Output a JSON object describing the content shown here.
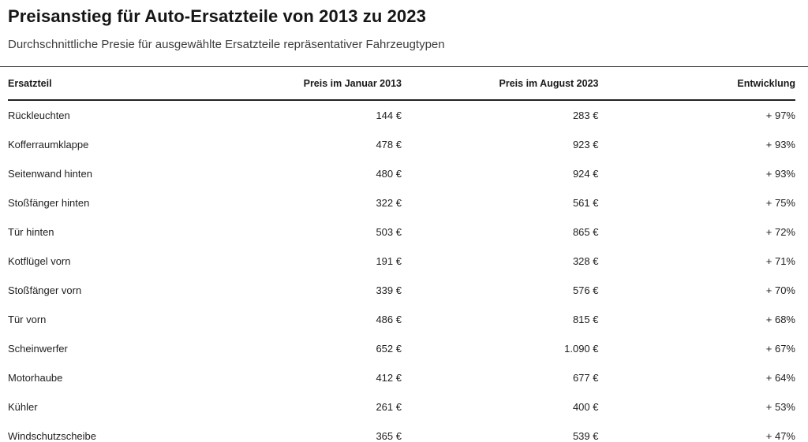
{
  "page": {
    "title": "Preisanstieg für Auto-Ersatzteile von 2013 zu 2023",
    "subtitle": "Durchschnittliche Presie für ausgewählte Ersatzteile repräsentativer Fahrzeugtypen"
  },
  "table": {
    "columns": [
      "Ersatzteil",
      "Preis im Januar 2013",
      "Preis im August 2023",
      "Entwicklung"
    ],
    "rows": [
      [
        "Rückleuchten",
        "144 €",
        "283 €",
        "+ 97%"
      ],
      [
        "Kofferraumklappe",
        "478 €",
        "923 €",
        "+ 93%"
      ],
      [
        "Seitenwand hinten",
        "480 €",
        "924 €",
        "+ 93%"
      ],
      [
        "Stoßfänger hinten",
        "322 €",
        "561 €",
        "+ 75%"
      ],
      [
        "Tür hinten",
        "503 €",
        "865 €",
        "+ 72%"
      ],
      [
        "Kotflügel vorn",
        "191 €",
        "328 €",
        "+ 71%"
      ],
      [
        "Stoßfänger vorn",
        "339 €",
        "576 €",
        "+ 70%"
      ],
      [
        "Tür vorn",
        "486 €",
        "815 €",
        "+ 68%"
      ],
      [
        "Scheinwerfer",
        "652 €",
        "1.090 €",
        "+ 67%"
      ],
      [
        "Motorhaube",
        "412 €",
        "677 €",
        "+ 64%"
      ],
      [
        "Kühler",
        "261 €",
        "400 €",
        "+ 53%"
      ],
      [
        "Windschutzscheibe",
        "365 €",
        "539 €",
        "+ 47%"
      ]
    ]
  },
  "chart_data": {
    "type": "table",
    "title": "Preisanstieg für Auto-Ersatzteile von 2013 zu 2023",
    "subtitle": "Durchschnittliche Presie für ausgewählte Ersatzteile repräsentativer Fahrzeugtypen",
    "columns": [
      "Ersatzteil",
      "Preis im Januar 2013",
      "Preis im August 2023",
      "Entwicklung"
    ],
    "price_unit": "EUR",
    "rows": [
      {
        "ersatzteil": "Rückleuchten",
        "preis_jan_2013": 144,
        "preis_aug_2023": 283,
        "entwicklung_pct": 97
      },
      {
        "ersatzteil": "Kofferraumklappe",
        "preis_jan_2013": 478,
        "preis_aug_2023": 923,
        "entwicklung_pct": 93
      },
      {
        "ersatzteil": "Seitenwand hinten",
        "preis_jan_2013": 480,
        "preis_aug_2023": 924,
        "entwicklung_pct": 93
      },
      {
        "ersatzteil": "Stoßfänger hinten",
        "preis_jan_2013": 322,
        "preis_aug_2023": 561,
        "entwicklung_pct": 75
      },
      {
        "ersatzteil": "Tür hinten",
        "preis_jan_2013": 503,
        "preis_aug_2023": 865,
        "entwicklung_pct": 72
      },
      {
        "ersatzteil": "Kotflügel vorn",
        "preis_jan_2013": 191,
        "preis_aug_2023": 328,
        "entwicklung_pct": 71
      },
      {
        "ersatzteil": "Stoßfänger vorn",
        "preis_jan_2013": 339,
        "preis_aug_2023": 576,
        "entwicklung_pct": 70
      },
      {
        "ersatzteil": "Tür vorn",
        "preis_jan_2013": 486,
        "preis_aug_2023": 815,
        "entwicklung_pct": 68
      },
      {
        "ersatzteil": "Scheinwerfer",
        "preis_jan_2013": 652,
        "preis_aug_2023": 1090,
        "entwicklung_pct": 67
      },
      {
        "ersatzteil": "Motorhaube",
        "preis_jan_2013": 412,
        "preis_aug_2023": 677,
        "entwicklung_pct": 64
      },
      {
        "ersatzteil": "Kühler",
        "preis_jan_2013": 261,
        "preis_aug_2023": 400,
        "entwicklung_pct": 53
      },
      {
        "ersatzteil": "Windschutzscheibe",
        "preis_jan_2013": 365,
        "preis_aug_2023": 539,
        "entwicklung_pct": 47
      }
    ]
  },
  "colors": {
    "title_text": "#161616",
    "subtitle_text": "#3e3e3e",
    "top_rule": "#4b4b4b",
    "header_rule": "#222222",
    "bottom_rule": "#d8d8d8",
    "scrollbar_thumb": "#a9a9a9",
    "background": "#ffffff"
  }
}
